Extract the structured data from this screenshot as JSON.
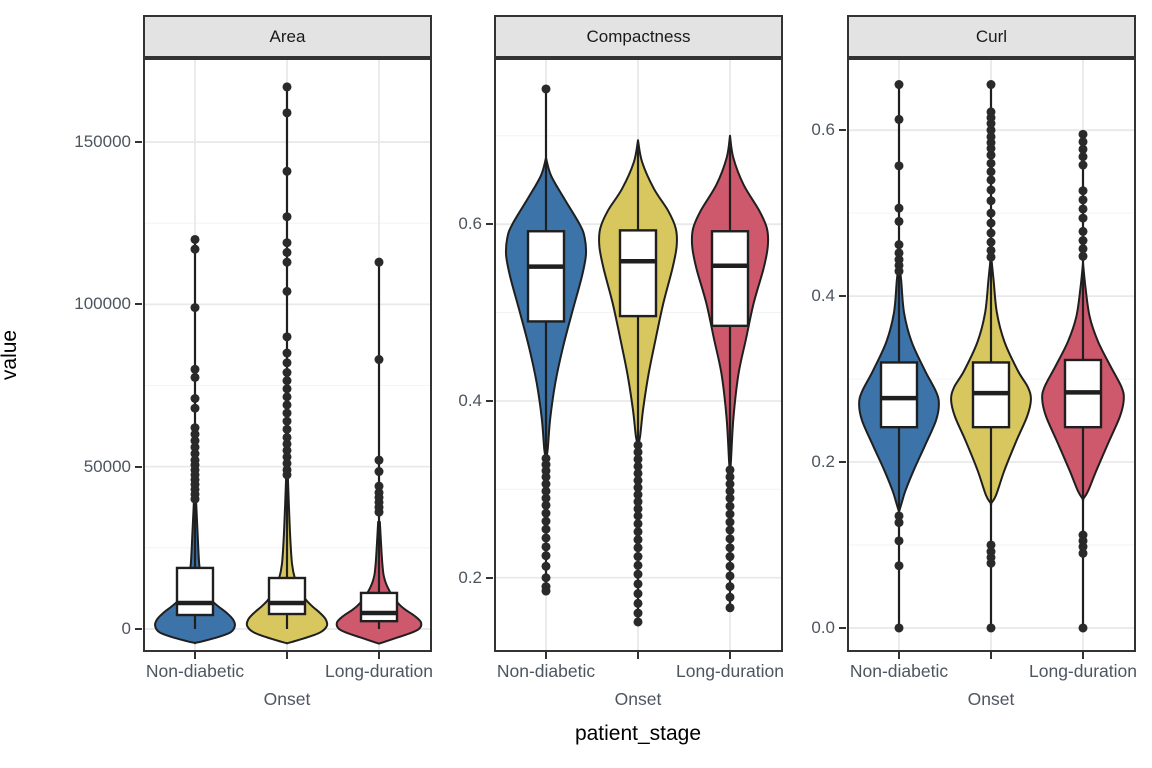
{
  "chart_data": {
    "type": "violin+box",
    "xlabel": "patient_stage",
    "ylabel": "value",
    "categories": [
      "Non-diabetic",
      "Onset",
      "Long-duration"
    ],
    "category_colors": {
      "Non-diabetic": "#3c73a8",
      "Onset": "#d8c75e",
      "Long-duration": "#cf596c"
    },
    "style": {
      "strip_fill": "#e3e3e3",
      "panel_border": "#333333",
      "grid_major": "#e9e9e9",
      "grid_minor": "#f4f4f4",
      "ink": "#1f1f1f",
      "dot": "#2a2a2a",
      "axis_text": "#4d5560"
    },
    "facets": [
      {
        "label": "Area",
        "ylim": [
          -7100,
          175900
        ],
        "ticks": [
          {
            "v": 150000,
            "t": "150000"
          },
          {
            "v": 100000,
            "t": "100000"
          },
          {
            "v": 50000,
            "t": "50000"
          },
          {
            "v": 0,
            "t": "0"
          }
        ],
        "minor": [
          125000,
          75000,
          25000
        ],
        "groups": [
          {
            "category": "Non-diabetic",
            "violin": [
              [
                41000,
                0.02
              ],
              [
                30000,
                0.06
              ],
              [
                20000,
                0.1
              ],
              [
                15000,
                0.16
              ],
              [
                12000,
                0.22
              ],
              [
                9000,
                0.38
              ],
              [
                7000,
                0.55
              ],
              [
                5000,
                0.75
              ],
              [
                3000,
                0.9
              ],
              [
                1000,
                0.95
              ],
              [
                -1000,
                0.85
              ],
              [
                -2500,
                0.55
              ],
              [
                -3800,
                0.18
              ],
              [
                -4300,
                0
              ]
            ],
            "box": {
              "q1": 4300,
              "median": 8000,
              "q3": 18800
            },
            "whisker": [
              0,
              120000
            ],
            "outliers": [
              120000,
              117000,
              99000,
              80000,
              77500,
              71000,
              68000,
              62000,
              60000,
              58000,
              56000,
              54000,
              52000,
              50500,
              49000,
              47500,
              46000,
              44500,
              43000,
              41500,
              40000
            ]
          },
          {
            "category": "Onset",
            "violin": [
              [
                47000,
                0.02
              ],
              [
                30000,
                0.07
              ],
              [
                20000,
                0.12
              ],
              [
                15000,
                0.2
              ],
              [
                12000,
                0.3
              ],
              [
                9000,
                0.45
              ],
              [
                7000,
                0.6
              ],
              [
                5000,
                0.78
              ],
              [
                3000,
                0.92
              ],
              [
                1000,
                0.95
              ],
              [
                -1000,
                0.8
              ],
              [
                -2500,
                0.5
              ],
              [
                -4000,
                0.12
              ],
              [
                -4400,
                0
              ]
            ],
            "box": {
              "q1": 4600,
              "median": 8000,
              "q3": 15700
            },
            "whisker": [
              0,
              167000
            ],
            "outliers": [
              167000,
              159000,
              141000,
              127000,
              119000,
              116000,
              113000,
              104000,
              90000,
              85000,
              82000,
              79000,
              76500,
              74000,
              71500,
              69000,
              66500,
              64000,
              61500,
              59000,
              57000,
              55000,
              53000,
              51000,
              49000,
              47500
            ]
          },
          {
            "category": "Long-duration",
            "violin": [
              [
                33000,
                0.02
              ],
              [
                20000,
                0.08
              ],
              [
                15000,
                0.14
              ],
              [
                11000,
                0.28
              ],
              [
                8000,
                0.45
              ],
              [
                6000,
                0.62
              ],
              [
                4000,
                0.85
              ],
              [
                2000,
                1.0
              ],
              [
                0,
                0.95
              ],
              [
                -1500,
                0.7
              ],
              [
                -3000,
                0.35
              ],
              [
                -4200,
                0.08
              ],
              [
                -4500,
                0
              ]
            ],
            "box": {
              "q1": 2400,
              "median": 4900,
              "q3": 11100
            },
            "whisker": [
              0,
              113000
            ],
            "outliers": [
              113000,
              83000,
              52000,
              48500,
              44000,
              42000,
              40500,
              39000,
              37500,
              36000
            ]
          }
        ]
      },
      {
        "label": "Compactness",
        "ylim": [
          0.116,
          0.788
        ],
        "ticks": [
          {
            "v": 0.6,
            "t": "0.6"
          },
          {
            "v": 0.4,
            "t": "0.4"
          },
          {
            "v": 0.2,
            "t": "0.2"
          }
        ],
        "minor": [
          0.7,
          0.5,
          0.3
        ],
        "groups": [
          {
            "category": "Non-diabetic",
            "violin": [
              [
                0.675,
                0
              ],
              [
                0.655,
                0.12
              ],
              [
                0.63,
                0.42
              ],
              [
                0.6,
                0.8
              ],
              [
                0.585,
                0.92
              ],
              [
                0.565,
                0.95
              ],
              [
                0.54,
                0.85
              ],
              [
                0.5,
                0.62
              ],
              [
                0.46,
                0.4
              ],
              [
                0.42,
                0.22
              ],
              [
                0.38,
                0.1
              ],
              [
                0.345,
                0.04
              ],
              [
                0.335,
                0
              ]
            ],
            "box": {
              "q1": 0.49,
              "median": 0.552,
              "q3": 0.592
            },
            "whisker": [
              0.185,
              0.753
            ],
            "outliers": [
              0.753,
              0.335,
              0.328,
              0.321,
              0.314,
              0.306,
              0.298,
              0.29,
              0.282,
              0.273,
              0.264,
              0.255,
              0.245,
              0.235,
              0.225,
              0.213,
              0.2,
              0.19,
              0.185
            ]
          },
          {
            "category": "Onset",
            "violin": [
              [
                0.695,
                0
              ],
              [
                0.67,
                0.1
              ],
              [
                0.64,
                0.38
              ],
              [
                0.615,
                0.72
              ],
              [
                0.595,
                0.9
              ],
              [
                0.575,
                0.92
              ],
              [
                0.55,
                0.82
              ],
              [
                0.51,
                0.6
              ],
              [
                0.47,
                0.42
              ],
              [
                0.43,
                0.25
              ],
              [
                0.39,
                0.12
              ],
              [
                0.36,
                0.05
              ],
              [
                0.35,
                0
              ]
            ],
            "box": {
              "q1": 0.496,
              "median": 0.558,
              "q3": 0.593
            },
            "whisker": [
              0.15,
              0.688
            ],
            "outliers": [
              0.35,
              0.342,
              0.334,
              0.326,
              0.318,
              0.31,
              0.302,
              0.294,
              0.286,
              0.278,
              0.27,
              0.261,
              0.252,
              0.243,
              0.234,
              0.224,
              0.214,
              0.204,
              0.193,
              0.182,
              0.171,
              0.16,
              0.15
            ]
          },
          {
            "category": "Long-duration",
            "violin": [
              [
                0.7,
                0
              ],
              [
                0.675,
                0.08
              ],
              [
                0.645,
                0.32
              ],
              [
                0.615,
                0.7
              ],
              [
                0.595,
                0.88
              ],
              [
                0.575,
                0.9
              ],
              [
                0.55,
                0.8
              ],
              [
                0.51,
                0.56
              ],
              [
                0.47,
                0.38
              ],
              [
                0.43,
                0.2
              ],
              [
                0.38,
                0.08
              ],
              [
                0.33,
                0.02
              ],
              [
                0.325,
                0
              ]
            ],
            "box": {
              "q1": 0.485,
              "median": 0.553,
              "q3": 0.592
            },
            "whisker": [
              0.165,
              0.688
            ],
            "outliers": [
              0.322,
              0.314,
              0.306,
              0.298,
              0.29,
              0.281,
              0.272,
              0.263,
              0.254,
              0.244,
              0.234,
              0.224,
              0.213,
              0.202,
              0.19,
              0.178,
              0.166
            ]
          }
        ]
      },
      {
        "label": "Curl",
        "ylim": [
          -0.029,
          0.687
        ],
        "ticks": [
          {
            "v": 0.6,
            "t": "0.6"
          },
          {
            "v": 0.4,
            "t": "0.4"
          },
          {
            "v": 0.2,
            "t": "0.2"
          },
          {
            "v": 0.0,
            "t": "0.0"
          }
        ],
        "minor": [
          0.5,
          0.3,
          0.1
        ],
        "groups": [
          {
            "category": "Non-diabetic",
            "violin": [
              [
                0.44,
                0
              ],
              [
                0.42,
                0.05
              ],
              [
                0.38,
                0.12
              ],
              [
                0.345,
                0.3
              ],
              [
                0.31,
                0.62
              ],
              [
                0.285,
                0.88
              ],
              [
                0.27,
                0.95
              ],
              [
                0.25,
                0.88
              ],
              [
                0.22,
                0.62
              ],
              [
                0.19,
                0.35
              ],
              [
                0.165,
                0.15
              ],
              [
                0.15,
                0.06
              ],
              [
                0.14,
                0
              ]
            ],
            "box": {
              "q1": 0.242,
              "median": 0.277,
              "q3": 0.32
            },
            "whisker": [
              0.0,
              0.655
            ],
            "outliers": [
              0.655,
              0.613,
              0.557,
              0.506,
              0.49,
              0.462,
              0.452,
              0.444,
              0.437,
              0.43,
              0.135,
              0.127,
              0.105,
              0.075,
              0.0
            ]
          },
          {
            "category": "Onset",
            "violin": [
              [
                0.45,
                0
              ],
              [
                0.42,
                0.06
              ],
              [
                0.38,
                0.14
              ],
              [
                0.345,
                0.32
              ],
              [
                0.31,
                0.64
              ],
              [
                0.29,
                0.88
              ],
              [
                0.275,
                0.95
              ],
              [
                0.255,
                0.86
              ],
              [
                0.225,
                0.6
              ],
              [
                0.19,
                0.32
              ],
              [
                0.16,
                0.12
              ],
              [
                0.15,
                0
              ]
            ],
            "box": {
              "q1": 0.242,
              "median": 0.283,
              "q3": 0.32
            },
            "whisker": [
              0.0,
              0.655
            ],
            "outliers": [
              0.655,
              0.622,
              0.615,
              0.608,
              0.6,
              0.592,
              0.585,
              0.578,
              0.57,
              0.56,
              0.55,
              0.54,
              0.528,
              0.515,
              0.5,
              0.488,
              0.476,
              0.465,
              0.455,
              0.447,
              0.1,
              0.092,
              0.085,
              0.078,
              0.0
            ]
          },
          {
            "category": "Long-duration",
            "violin": [
              [
                0.44,
                0
              ],
              [
                0.41,
                0.06
              ],
              [
                0.375,
                0.16
              ],
              [
                0.345,
                0.36
              ],
              [
                0.315,
                0.66
              ],
              [
                0.29,
                0.92
              ],
              [
                0.275,
                0.97
              ],
              [
                0.255,
                0.88
              ],
              [
                0.225,
                0.62
              ],
              [
                0.19,
                0.32
              ],
              [
                0.165,
                0.12
              ],
              [
                0.155,
                0
              ]
            ],
            "box": {
              "q1": 0.242,
              "median": 0.284,
              "q3": 0.323
            },
            "whisker": [
              0.0,
              0.595
            ],
            "outliers": [
              0.595,
              0.586,
              0.577,
              0.568,
              0.558,
              0.527,
              0.516,
              0.505,
              0.494,
              0.478,
              0.467,
              0.457,
              0.448,
              0.112,
              0.105,
              0.098,
              0.09,
              0.0
            ]
          }
        ]
      }
    ]
  }
}
